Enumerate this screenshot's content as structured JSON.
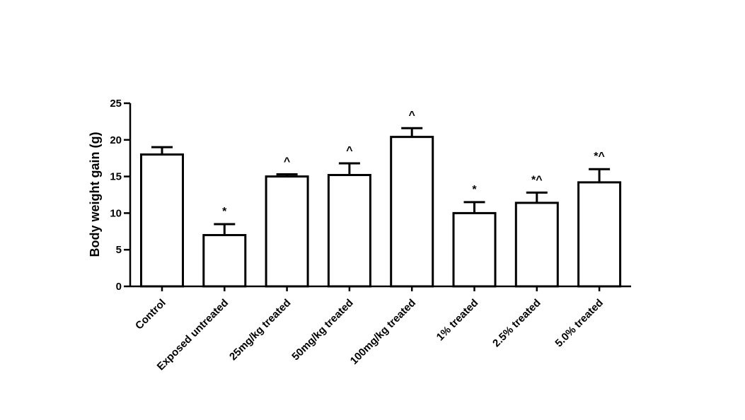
{
  "chart_data": {
    "type": "bar",
    "title": "",
    "xlabel": "",
    "ylabel": "Body weight gain (g)",
    "ylim": [
      0,
      25
    ],
    "yticks": [
      0,
      5,
      10,
      15,
      20,
      25
    ],
    "grid": false,
    "legend": "none",
    "categories": [
      "Control",
      "Exposed untreated",
      "25mg/kg treated",
      "50mg/kg treated",
      "100mg/kg treated",
      "1% treated",
      "2.5% treated",
      "5.0% treated"
    ],
    "series": [
      {
        "values": [
          18.0,
          7.0,
          15.0,
          15.2,
          20.4,
          10.0,
          11.4,
          14.2
        ],
        "error": [
          1.0,
          1.5,
          0.3,
          1.6,
          1.2,
          1.5,
          1.4,
          1.8
        ]
      }
    ],
    "annotations": [
      "",
      "*",
      "^",
      "^",
      "^",
      "*",
      "*^",
      "*^"
    ],
    "colors": {
      "bar_fill": "#ffffff",
      "stroke": "#000000"
    }
  }
}
